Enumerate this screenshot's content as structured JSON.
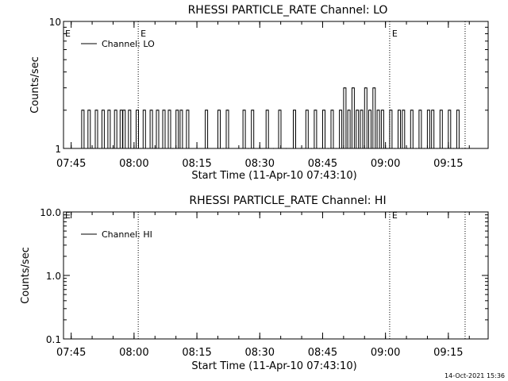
{
  "footer": {
    "timestamp": "14-Oct-2021 15:36"
  },
  "colors": {
    "line": "#000000",
    "background": "#ffffff"
  },
  "chart_data": [
    {
      "type": "line",
      "title": "RHESSI PARTICLE_RATE Channel: LO",
      "xlabel": "Start Time (11-Apr-10 07:43:10)",
      "ylabel": "Counts/sec",
      "y_scale": "log",
      "ylim": [
        1,
        10
      ],
      "y_tick_labels": [
        "1",
        "10"
      ],
      "x_tick_labels": [
        "07:45",
        "08:00",
        "08:15",
        "08:30",
        "08:45",
        "09:00",
        "09:15"
      ],
      "xlim": [
        "07:43:10",
        "09:24:30"
      ],
      "legend": {
        "label": "Channel: LO",
        "position": "top-left"
      },
      "markers": [
        {
          "time": "08:01:00",
          "label": "E"
        },
        {
          "time": "09:01:00",
          "label": "E"
        },
        {
          "time": "09:19:00",
          "label": ""
        }
      ],
      "edge_marker_label": "E",
      "series": [
        {
          "name": "Channel: LO",
          "x": [
            "07:47:30",
            "07:48:15",
            "07:49:00",
            "07:50:00",
            "07:50:45",
            "07:51:30",
            "07:52:20",
            "07:53:00",
            "07:53:45",
            "07:54:30",
            "07:55:20",
            "07:56:00",
            "07:56:40",
            "07:57:20",
            "07:58:00",
            "07:58:40",
            "07:59:30",
            "08:00:30",
            "08:01:20",
            "08:02:10",
            "08:03:00",
            "08:03:50",
            "08:04:40",
            "08:05:20",
            "08:06:10",
            "08:06:50",
            "08:07:30",
            "08:08:10",
            "08:09:00",
            "08:10:00",
            "08:11:00",
            "08:12:30",
            "08:17:00",
            "08:20:00",
            "08:21:00",
            "08:22:00",
            "08:26:00",
            "08:27:00",
            "08:28:00",
            "08:30:00",
            "08:31:30",
            "08:33:00",
            "08:34:30",
            "08:36:00",
            "08:38:00",
            "08:39:30",
            "08:41:00",
            "08:42:00",
            "08:43:00",
            "08:44:00",
            "08:45:00",
            "08:46:00",
            "08:47:00",
            "08:48:00",
            "08:49:00",
            "08:50:00",
            "08:51:00",
            "08:52:00",
            "08:53:00",
            "08:54:00",
            "08:55:00",
            "08:56:00",
            "08:57:00",
            "08:58:00",
            "08:59:00",
            "09:00:00",
            "09:01:00",
            "09:02:00",
            "09:03:00",
            "09:04:00",
            "09:05:00",
            "09:06:00",
            "09:07:00",
            "09:08:00",
            "09:09:00",
            "09:10:00",
            "09:11:00",
            "09:12:00",
            "09:13:00",
            "09:14:00",
            "09:15:00",
            "09:16:00",
            "09:17:00",
            "09:18:00"
          ],
          "y": [
            2,
            1,
            2,
            1,
            2,
            1,
            2,
            1,
            2,
            1,
            2,
            1,
            2,
            2,
            1,
            2,
            1,
            2,
            1,
            2,
            1,
            2,
            1,
            2,
            1,
            2,
            1,
            2,
            1,
            2,
            2,
            2,
            2,
            2,
            1,
            2,
            2,
            1,
            2,
            1,
            2,
            1,
            2,
            1,
            2,
            1,
            2,
            1,
            2,
            1,
            2,
            1,
            2,
            1,
            2,
            3,
            2,
            3,
            2,
            2,
            3,
            2,
            3,
            2,
            2,
            1,
            2,
            1,
            2,
            2,
            1,
            2,
            1,
            2,
            1,
            2,
            2,
            1,
            2,
            1,
            2,
            1,
            2,
            1
          ]
        }
      ]
    },
    {
      "type": "line",
      "title": "RHESSI PARTICLE_RATE Channel: HI",
      "xlabel": "Start Time (11-Apr-10 07:43:10)",
      "ylabel": "Counts/sec",
      "y_scale": "log",
      "ylim": [
        0.1,
        10
      ],
      "y_tick_labels": [
        "0.1",
        "1.0",
        "10.0"
      ],
      "x_tick_labels": [
        "07:45",
        "08:00",
        "08:15",
        "08:30",
        "08:45",
        "09:00",
        "09:15"
      ],
      "xlim": [
        "07:43:10",
        "09:24:30"
      ],
      "legend": {
        "label": "Channel: HI",
        "position": "top-left"
      },
      "markers": [
        {
          "time": "08:01:00",
          "label": ""
        },
        {
          "time": "09:01:00",
          "label": "E"
        },
        {
          "time": "09:19:00",
          "label": ""
        }
      ],
      "edge_marker_label": "E",
      "series": [
        {
          "name": "Channel: HI",
          "x": [],
          "y": []
        }
      ]
    }
  ]
}
